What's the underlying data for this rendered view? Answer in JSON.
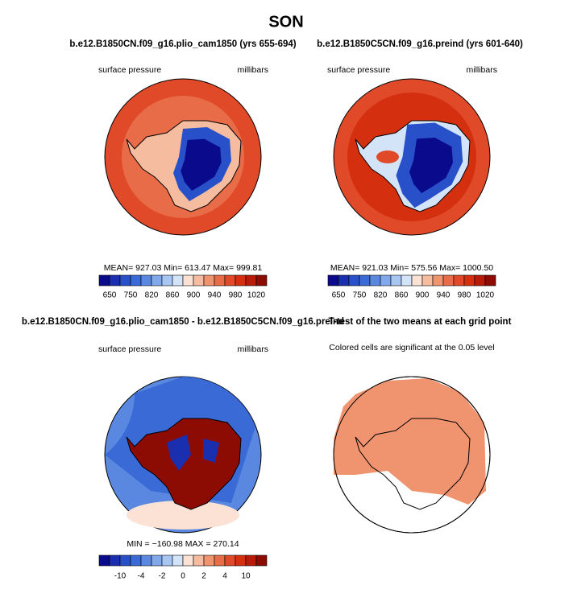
{
  "title": "SON",
  "panels": [
    {
      "title": "b.e12.B1850CN.f09_g16.plio_cam1850 (yrs 655-694)",
      "left_label": "surface pressure",
      "right_label": "millibars",
      "stats": "MEAN= 927.03   Min= 613.47   Max= 999.81",
      "colorbar": {
        "labels": [
          "650",
          "750",
          "820",
          "860",
          "900",
          "940",
          "980",
          "1020"
        ]
      }
    },
    {
      "title": "b.e12.B1850C5CN.f09_g16.preind (yrs 601-640)",
      "left_label": "surface pressure",
      "right_label": "millibars",
      "stats": "MEAN= 921.03   Min= 575.56   Max= 1000.50",
      "colorbar": {
        "labels": [
          "650",
          "750",
          "820",
          "860",
          "900",
          "940",
          "980",
          "1020"
        ]
      }
    },
    {
      "title": "b.e12.B1850CN.f09_g16.plio_cam1850 - b.e12.B1850C5CN.f09_g16.preind",
      "left_label": "surface pressure",
      "right_label": "millibars",
      "stats": "MIN = −160.98  MAX = 270.14",
      "colorbar": {
        "labels": [
          "-10",
          "-4",
          "-2",
          "0",
          "2",
          "4",
          "10"
        ]
      }
    },
    {
      "title": "T-test of the two means at each grid point",
      "left_label": "Colored cells are significant at the 0.05 level"
    }
  ],
  "colorbar_colors": [
    "#0a0a8c",
    "#1a2fb0",
    "#2850c8",
    "#3a6ad6",
    "#5a88e0",
    "#80a8ea",
    "#a8c6f2",
    "#d4e4f8",
    "#fbe2d4",
    "#f6bca0",
    "#f09470",
    "#e86c48",
    "#e04a28",
    "#d43010",
    "#b81c08",
    "#8c0c04"
  ]
}
